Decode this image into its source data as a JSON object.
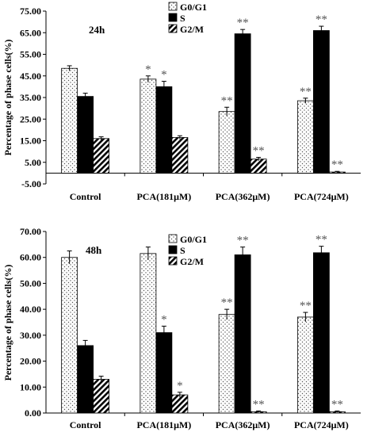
{
  "colors": {
    "axis": "#000000",
    "bar_fill_s": "#000000",
    "bar_face": "#ffffff"
  },
  "chart_data": [
    {
      "type": "bar",
      "panel_label": "24h",
      "ylabel": "Percentage of phase cells(%)",
      "categories": [
        "Control",
        "PCA(181μM)",
        "PCA(362μM)",
        "PCA(724μM)"
      ],
      "ylim": [
        -5,
        75
      ],
      "yticks": [
        "75.00",
        "65.00",
        "55.00",
        "45.00",
        "35.00",
        "25.00",
        "15.00",
        "5.00",
        "-5.00"
      ],
      "legend_position": "top-center",
      "series": [
        {
          "name": "G0/G1",
          "pattern": "dots",
          "values": [
            48.5,
            43.5,
            28.5,
            33.5
          ],
          "errors": [
            1.2,
            1.5,
            2.0,
            1.2
          ],
          "marks": [
            "",
            "*",
            "**",
            "**"
          ]
        },
        {
          "name": "S",
          "pattern": "solid",
          "values": [
            35.5,
            40.0,
            64.5,
            66.0
          ],
          "errors": [
            1.5,
            2.5,
            2.0,
            2.0
          ],
          "marks": [
            "",
            "*",
            "**",
            "**"
          ]
        },
        {
          "name": "G2/M",
          "pattern": "hatch",
          "values": [
            16.0,
            16.5,
            6.5,
            0.5
          ],
          "errors": [
            0.8,
            0.8,
            0.8,
            0.3
          ],
          "marks": [
            "",
            "",
            "**",
            "**"
          ]
        }
      ]
    },
    {
      "type": "bar",
      "panel_label": "48h",
      "ylabel": "Percentage of phase cells(%)",
      "categories": [
        "Control",
        "PCA(181μM)",
        "PCA(362μM)",
        "PCA(724μM)"
      ],
      "ylim": [
        0,
        70
      ],
      "yticks": [
        "70.00",
        "60.00",
        "50.00",
        "40.00",
        "30.00",
        "20.00",
        "10.00",
        "0.00"
      ],
      "legend_position": "top-center",
      "series": [
        {
          "name": "G0/G1",
          "pattern": "dots",
          "values": [
            60.0,
            61.5,
            38.0,
            37.0
          ],
          "errors": [
            2.5,
            2.5,
            2.0,
            1.8
          ],
          "marks": [
            "",
            "",
            "**",
            "**"
          ]
        },
        {
          "name": "S",
          "pattern": "solid",
          "values": [
            26.0,
            31.0,
            61.0,
            61.8
          ],
          "errors": [
            2.0,
            2.5,
            3.0,
            2.5
          ],
          "marks": [
            "",
            "*",
            "**",
            "**"
          ]
        },
        {
          "name": "G2/M",
          "pattern": "hatch",
          "values": [
            13.0,
            7.0,
            0.5,
            0.5
          ],
          "errors": [
            1.2,
            1.0,
            0.3,
            0.3
          ],
          "marks": [
            "",
            "*",
            "**",
            "**"
          ]
        }
      ]
    }
  ]
}
